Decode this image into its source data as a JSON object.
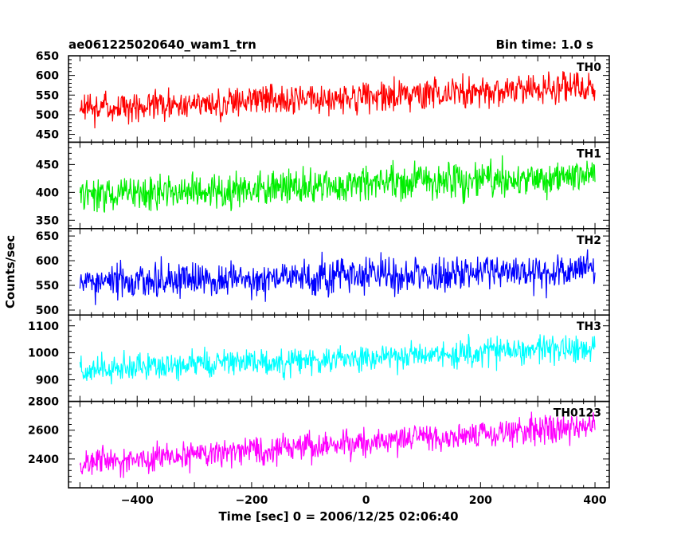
{
  "header": {
    "title": "ae061225020640_wam1_trn",
    "bin_time": "Bin time: 1.0 s"
  },
  "chart_data": [
    {
      "type": "line",
      "panel_label": "TH0",
      "color": "#ff0000",
      "ylim": [
        430,
        650
      ],
      "y_ticks": [
        450,
        500,
        550,
        600,
        650
      ],
      "trend": {
        "start": 515,
        "end": 570,
        "noise": 28,
        "x_range": [
          -500,
          400
        ]
      }
    },
    {
      "type": "line",
      "panel_label": "TH1",
      "color": "#00ee00",
      "ylim": [
        335,
        490
      ],
      "y_ticks": [
        350,
        400,
        450
      ],
      "trend": {
        "start": 395,
        "end": 430,
        "noise": 22,
        "x_range": [
          -500,
          400
        ]
      }
    },
    {
      "type": "line",
      "panel_label": "TH2",
      "color": "#0000ff",
      "ylim": [
        490,
        665
      ],
      "y_ticks": [
        500,
        550,
        600,
        650
      ],
      "trend": {
        "start": 555,
        "end": 580,
        "noise": 25,
        "x_range": [
          -500,
          400
        ]
      }
    },
    {
      "type": "line",
      "panel_label": "TH3",
      "color": "#00ffff",
      "ylim": [
        820,
        1140
      ],
      "y_ticks": [
        900,
        1000,
        1100
      ],
      "trend": {
        "start": 935,
        "end": 1020,
        "noise": 35,
        "x_range": [
          -500,
          400
        ]
      }
    },
    {
      "type": "line",
      "panel_label": "TH0123",
      "color": "#ff00ff",
      "ylim": [
        2200,
        2800
      ],
      "y_ticks": [
        2400,
        2600,
        2800
      ],
      "trend": {
        "start": 2370,
        "end": 2630,
        "noise": 70,
        "x_range": [
          -500,
          400
        ]
      }
    }
  ],
  "x_axis": {
    "xlim": [
      -520,
      425
    ],
    "ticks": [
      -400,
      -200,
      0,
      200,
      400
    ],
    "label": "Time [sec] 0 = 2006/12/25 02:06:40"
  },
  "y_axis": {
    "label": "Counts/sec"
  }
}
